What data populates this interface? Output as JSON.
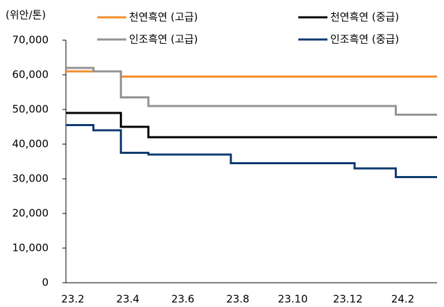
{
  "chart_data": {
    "type": "line",
    "step": true,
    "y_label": "(위안/톤)",
    "categories": [
      "23.2",
      null,
      null,
      null,
      "23.4",
      null,
      null,
      null,
      "23.6",
      null,
      null,
      null,
      "23.8",
      null,
      null,
      null,
      "23.10",
      null,
      null,
      null,
      "23.12",
      null,
      null,
      null,
      "24.2",
      null,
      null,
      null
    ],
    "series": [
      {
        "name": "천연흑연 (고급)",
        "color": "#f28e2b",
        "values": [
          61000,
          61000,
          61000,
          61000,
          59500,
          59500,
          59500,
          59500,
          59500,
          59500,
          59500,
          59500,
          59500,
          59500,
          59500,
          59500,
          59500,
          59500,
          59500,
          59500,
          59500,
          59500,
          59500,
          59500,
          59500,
          59500,
          59500,
          59500
        ]
      },
      {
        "name": "천연흑연 (중급)",
        "color": "#000000",
        "values": [
          49000,
          49000,
          49000,
          49000,
          45000,
          45000,
          42000,
          42000,
          42000,
          42000,
          42000,
          42000,
          42000,
          42000,
          42000,
          42000,
          42000,
          42000,
          42000,
          42000,
          42000,
          42000,
          42000,
          42000,
          42000,
          42000,
          42000,
          42000
        ]
      },
      {
        "name": "인조흑연 (고급)",
        "color": "#939393",
        "values": [
          62000,
          62000,
          61000,
          61000,
          53500,
          53500,
          51000,
          51000,
          51000,
          51000,
          51000,
          51000,
          51000,
          51000,
          51000,
          51000,
          51000,
          51000,
          51000,
          51000,
          51000,
          51000,
          51000,
          51000,
          48500,
          48500,
          48500,
          48500
        ]
      },
      {
        "name": "인조흑연 (중급)",
        "color": "#0e3b70",
        "values": [
          45500,
          45500,
          44000,
          44000,
          37500,
          37500,
          37000,
          37000,
          37000,
          37000,
          37000,
          37000,
          34500,
          34500,
          34500,
          34500,
          34500,
          34500,
          34500,
          34500,
          34500,
          33000,
          33000,
          33000,
          30500,
          30500,
          30500,
          30500
        ]
      }
    ],
    "ylim": [
      0,
      70000
    ],
    "yticks": [
      0,
      {
        "value": 10000,
        "label": "10,000"
      },
      {
        "value": 20000,
        "label": "20,000"
      },
      {
        "value": 30000,
        "label": "30,000"
      },
      {
        "value": 40000,
        "label": "40,000"
      },
      {
        "value": 50000,
        "label": "50,000"
      },
      {
        "value": 60000,
        "label": "60,000"
      },
      {
        "value": 70000,
        "label": "70,000"
      }
    ]
  }
}
